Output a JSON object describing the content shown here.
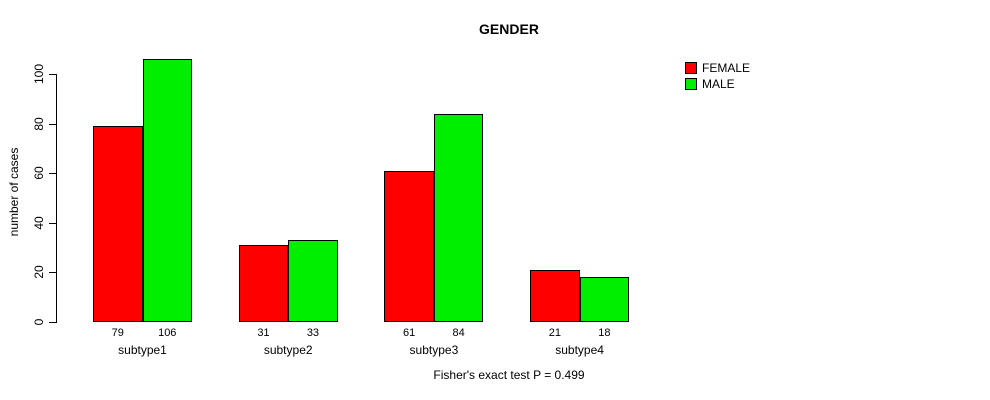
{
  "title": "GENDER",
  "annotation": "Fisher's exact test P = 0.499",
  "y_axis": {
    "label": "number of cases"
  },
  "legend": {
    "items": [
      {
        "label": "FEMALE",
        "color": "#ff0000"
      },
      {
        "label": "MALE",
        "color": "#00ee00"
      }
    ]
  },
  "chart_data": {
    "type": "bar",
    "title": "GENDER",
    "categories": [
      "subtype1",
      "subtype2",
      "subtype3",
      "subtype4"
    ],
    "series": [
      {
        "name": "FEMALE",
        "color": "#ff0000",
        "values": [
          79,
          31,
          61,
          21
        ]
      },
      {
        "name": "MALE",
        "color": "#00ee00",
        "values": [
          106,
          33,
          84,
          18
        ]
      }
    ],
    "xlabel": "",
    "ylabel": "number of cases",
    "ylim": [
      0,
      106
    ],
    "yticks": [
      0,
      20,
      40,
      60,
      80,
      100
    ],
    "bar_labels_shown": true,
    "legend_position": "top-right",
    "grid": false,
    "annotation": "Fisher's exact test P = 0.499"
  }
}
